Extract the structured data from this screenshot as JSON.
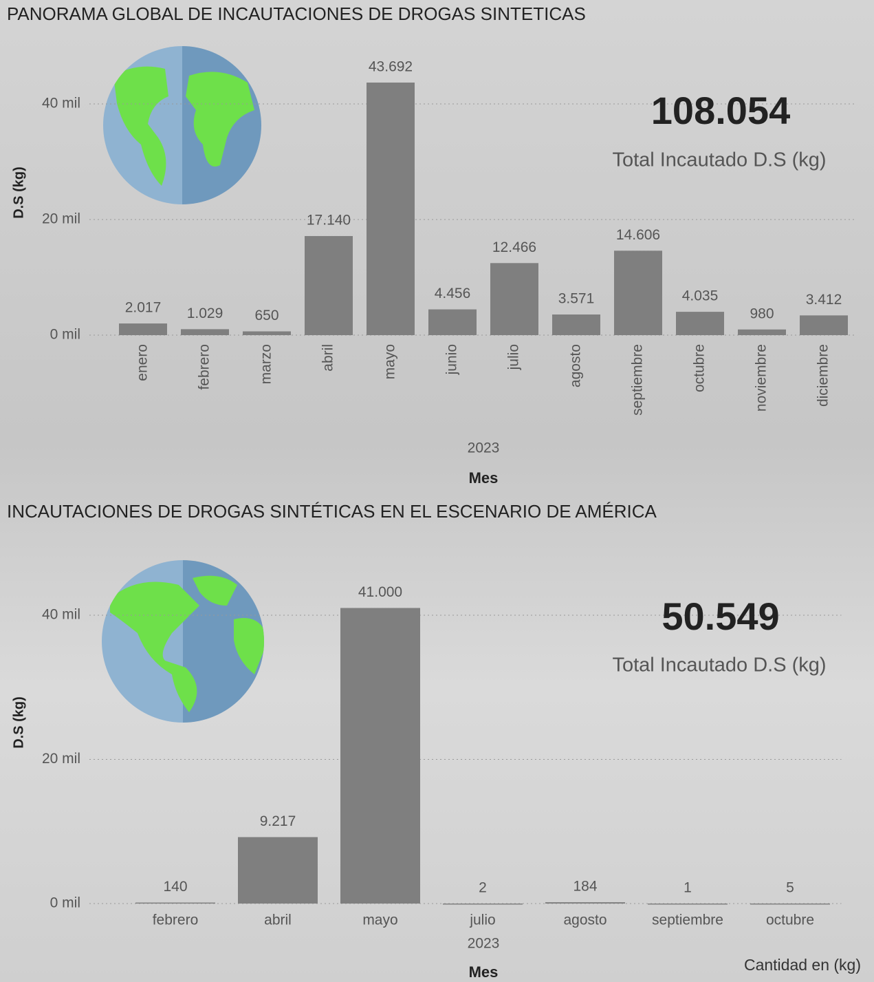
{
  "chart_data": [
    {
      "type": "bar",
      "title": "PANORAMA GLOBAL DE INCAUTACIONES DE DROGAS SINTETICAS",
      "ylabel": "D.S (kg)",
      "xlabel": "Mes",
      "x_group": "2023",
      "kpi_value": "108.054",
      "kpi_label": "Total Incautado D.S (kg)",
      "categories": [
        "enero",
        "febrero",
        "marzo",
        "abril",
        "mayo",
        "junio",
        "julio",
        "agosto",
        "septiembre",
        "octubre",
        "noviembre",
        "diciembre"
      ],
      "values": [
        2017,
        1029,
        650,
        17140,
        43692,
        4456,
        12466,
        3571,
        14606,
        4035,
        980,
        3412
      ],
      "value_labels": [
        "2.017",
        "1.029",
        "650",
        "17.140",
        "43.692",
        "4.456",
        "12.466",
        "3.571",
        "14.606",
        "4.035",
        "980",
        "3.412"
      ],
      "color": "#7f7f7f",
      "ylim": [
        0,
        45000
      ],
      "yticks": [
        {
          "value": 0,
          "label": "0 mil"
        },
        {
          "value": 20000,
          "label": "20 mil"
        },
        {
          "value": 40000,
          "label": "40 mil"
        }
      ],
      "grid": true
    },
    {
      "type": "bar",
      "title": "INCAUTACIONES DE DROGAS SINTÉTICAS EN EL ESCENARIO DE AMÉRICA",
      "ylabel": "D.S (kg)",
      "xlabel": "Mes",
      "x_group": "2023",
      "kpi_value": "50.549",
      "kpi_label": "Total Incautado D.S (kg)",
      "annotation": "Cantidad en (kg)",
      "categories": [
        "febrero",
        "abril",
        "mayo",
        "julio",
        "agosto",
        "septiembre",
        "octubre"
      ],
      "values": [
        140,
        9217,
        41000,
        2,
        184,
        1,
        5
      ],
      "value_labels": [
        "140",
        "9.217",
        "41.000",
        "2",
        "184",
        "1",
        "5"
      ],
      "color": "#7f7f7f",
      "ylim": [
        0,
        42000
      ],
      "yticks": [
        {
          "value": 0,
          "label": "0 mil"
        },
        {
          "value": 20000,
          "label": "20 mil"
        },
        {
          "value": 40000,
          "label": "40 mil"
        }
      ],
      "grid": true
    }
  ]
}
